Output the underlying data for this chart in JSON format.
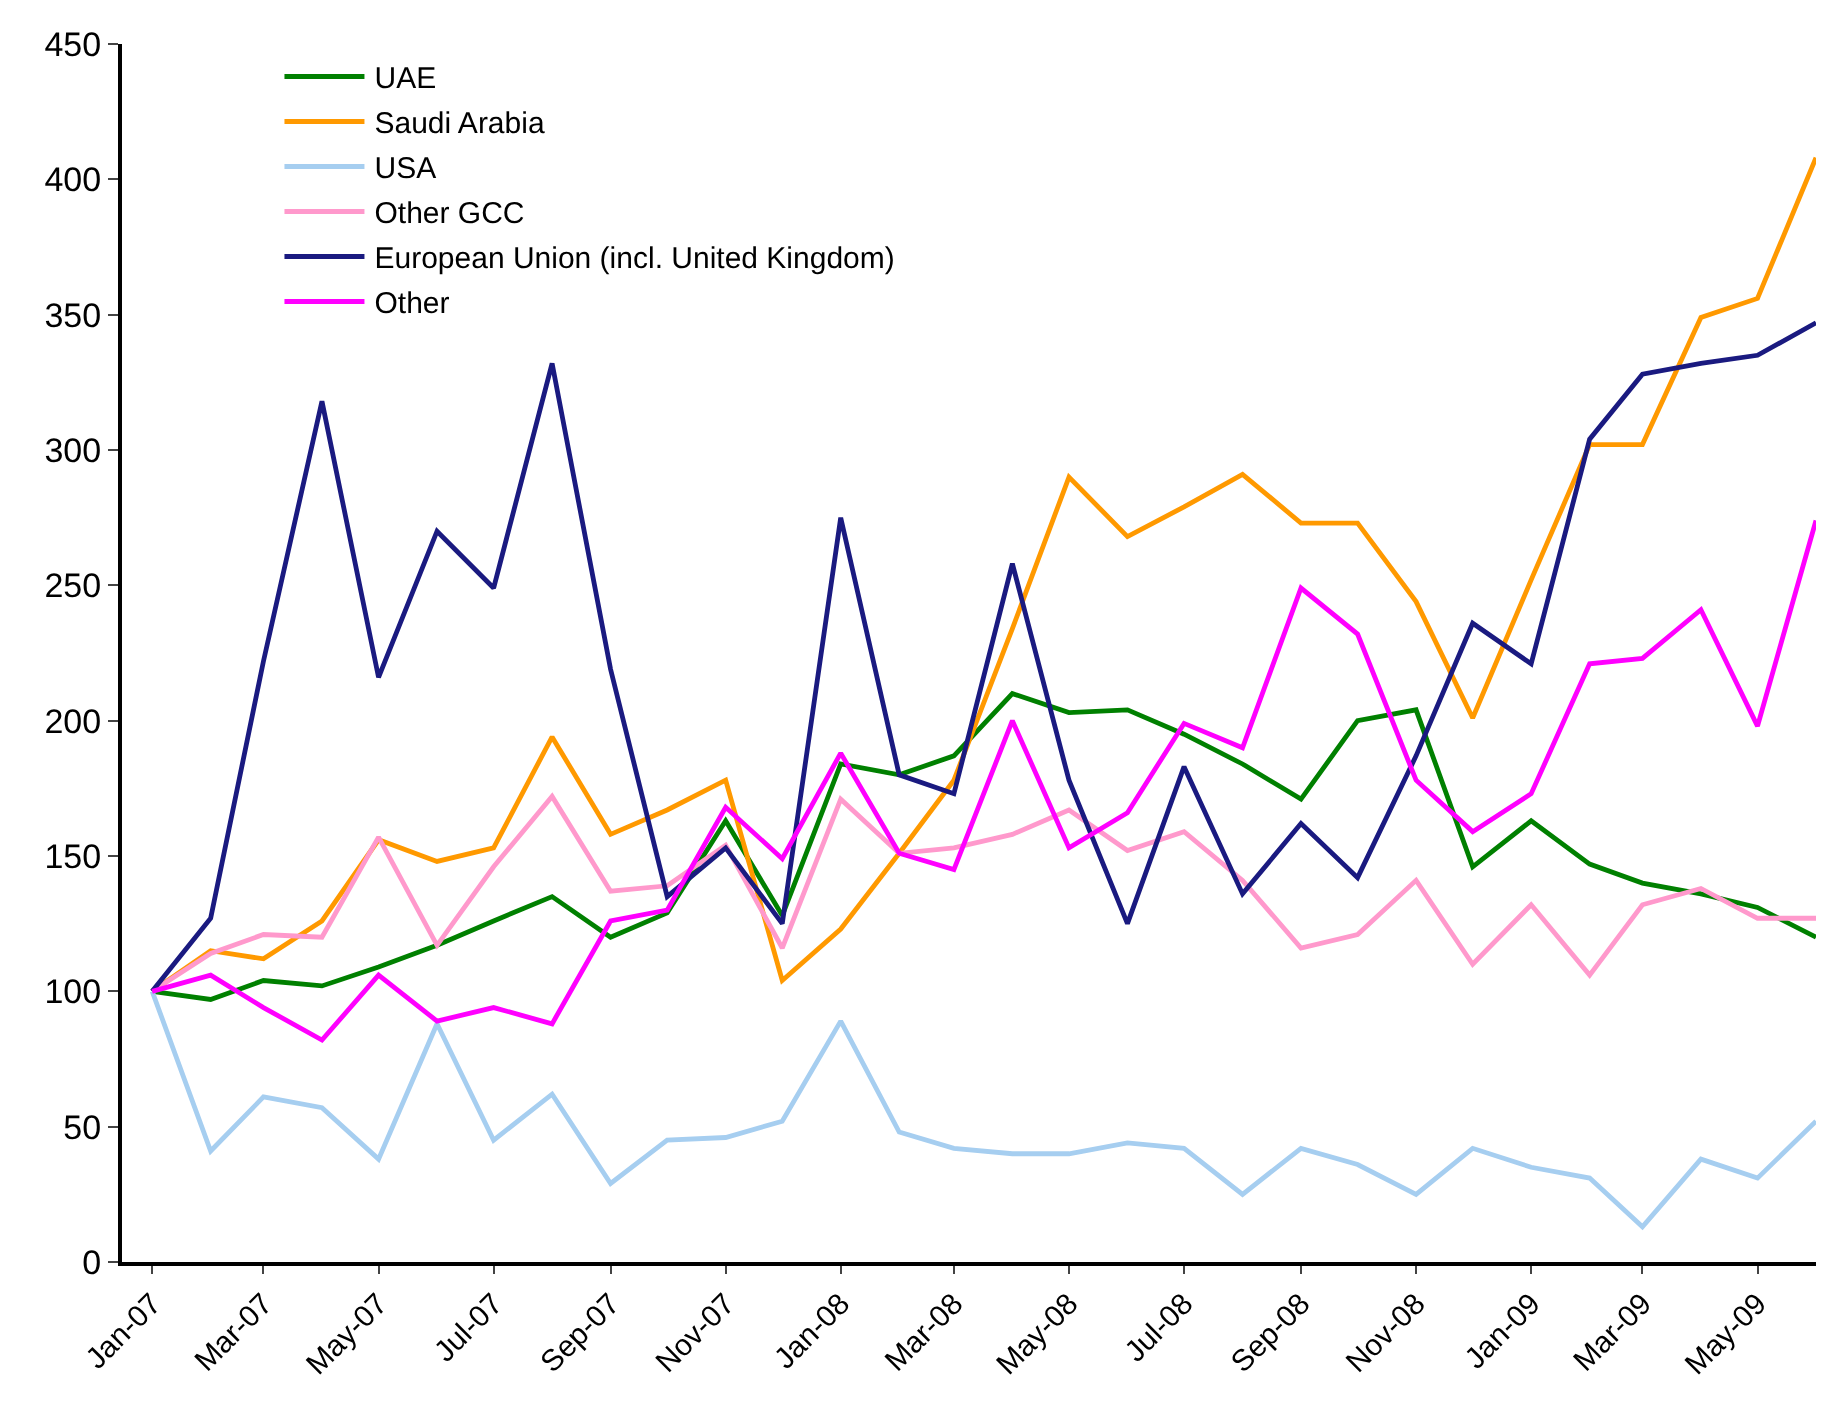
{
  "chart_data": {
    "type": "line",
    "x": [
      "2007-01",
      "2007-02",
      "2007-03",
      "2007-04",
      "2007-05",
      "2007-06",
      "2007-07",
      "2007-08",
      "2007-09",
      "2007-10",
      "2007-11",
      "2007-12",
      "2008-01",
      "2008-02",
      "2008-03",
      "2008-04",
      "2008-05",
      "2008-06",
      "2008-07",
      "2008-08",
      "2008-09",
      "2008-10",
      "2008-11",
      "2008-12",
      "2009-01",
      "2009-02",
      "2009-03",
      "2009-04",
      "2009-05",
      "2009-06"
    ],
    "series": [
      {
        "name": "UAE",
        "color": "#008000",
        "values": [
          100,
          97,
          104,
          102,
          109,
          117,
          126,
          135,
          120,
          129,
          163,
          128,
          184,
          180,
          187,
          210,
          203,
          204,
          195,
          184,
          171,
          200,
          204,
          146,
          163,
          147,
          140,
          136,
          131,
          120
        ]
      },
      {
        "name": "Saudi Arabia",
        "color": "#ff9900",
        "values": [
          100,
          115,
          112,
          126,
          156,
          148,
          153,
          194,
          158,
          167,
          178,
          104,
          123,
          151,
          178,
          234,
          290,
          268,
          279,
          291,
          273,
          273,
          244,
          201,
          252,
          302,
          302,
          349,
          356,
          408
        ]
      },
      {
        "name": "USA",
        "color": "#a6cef0",
        "values": [
          100,
          41,
          61,
          57,
          38,
          88,
          45,
          62,
          29,
          45,
          46,
          52,
          89,
          48,
          42,
          40,
          40,
          44,
          42,
          25,
          42,
          36,
          25,
          42,
          35,
          31,
          13,
          38,
          31,
          52
        ]
      },
      {
        "name": "Other GCC",
        "color": "#ff99cc",
        "values": [
          100,
          114,
          121,
          120,
          157,
          117,
          146,
          172,
          137,
          139,
          154,
          116,
          171,
          151,
          153,
          158,
          167,
          152,
          159,
          141,
          116,
          121,
          141,
          110,
          132,
          106,
          132,
          138,
          127,
          127
        ]
      },
      {
        "name": "European Union (incl. United Kingdom)",
        "color": "#1a1a80",
        "values": [
          100,
          127,
          222,
          318,
          216,
          270,
          249,
          332,
          219,
          135,
          153,
          125,
          275,
          180,
          173,
          258,
          178,
          125,
          183,
          136,
          162,
          142,
          187,
          236,
          221,
          304,
          328,
          332,
          335,
          347
        ]
      },
      {
        "name": "Other",
        "color": "#ff00ff",
        "values": [
          100,
          106,
          94,
          82,
          106,
          89,
          94,
          88,
          126,
          130,
          168,
          149,
          188,
          151,
          145,
          200,
          153,
          166,
          199,
          190,
          249,
          232,
          178,
          159,
          173,
          221,
          223,
          241,
          198,
          274
        ]
      }
    ],
    "xlim": [
      "2006-12-16",
      "2009-06-01"
    ],
    "xticks": [
      {
        "value": "2007-01",
        "label": "Jan-07"
      },
      {
        "value": "2007-03",
        "label": "Mar-07"
      },
      {
        "value": "2007-05",
        "label": "May-07"
      },
      {
        "value": "2007-07",
        "label": "Jul-07"
      },
      {
        "value": "2007-09",
        "label": "Sep-07"
      },
      {
        "value": "2007-11",
        "label": "Nov-07"
      },
      {
        "value": "2008-01",
        "label": "Jan-08"
      },
      {
        "value": "2008-03",
        "label": "Mar-08"
      },
      {
        "value": "2008-05",
        "label": "May-08"
      },
      {
        "value": "2008-07",
        "label": "Jul-08"
      },
      {
        "value": "2008-09",
        "label": "Sep-08"
      },
      {
        "value": "2008-11",
        "label": "Nov-08"
      },
      {
        "value": "2009-01",
        "label": "Jan-09"
      },
      {
        "value": "2009-03",
        "label": "Mar-09"
      },
      {
        "value": "2009-05",
        "label": "May-09"
      }
    ],
    "ylim": [
      0,
      450
    ],
    "yticks": [
      0,
      50,
      100,
      150,
      200,
      250,
      300,
      350,
      400,
      450
    ],
    "grid": false,
    "legend": "top",
    "marker": "none",
    "line_style": "solid"
  }
}
